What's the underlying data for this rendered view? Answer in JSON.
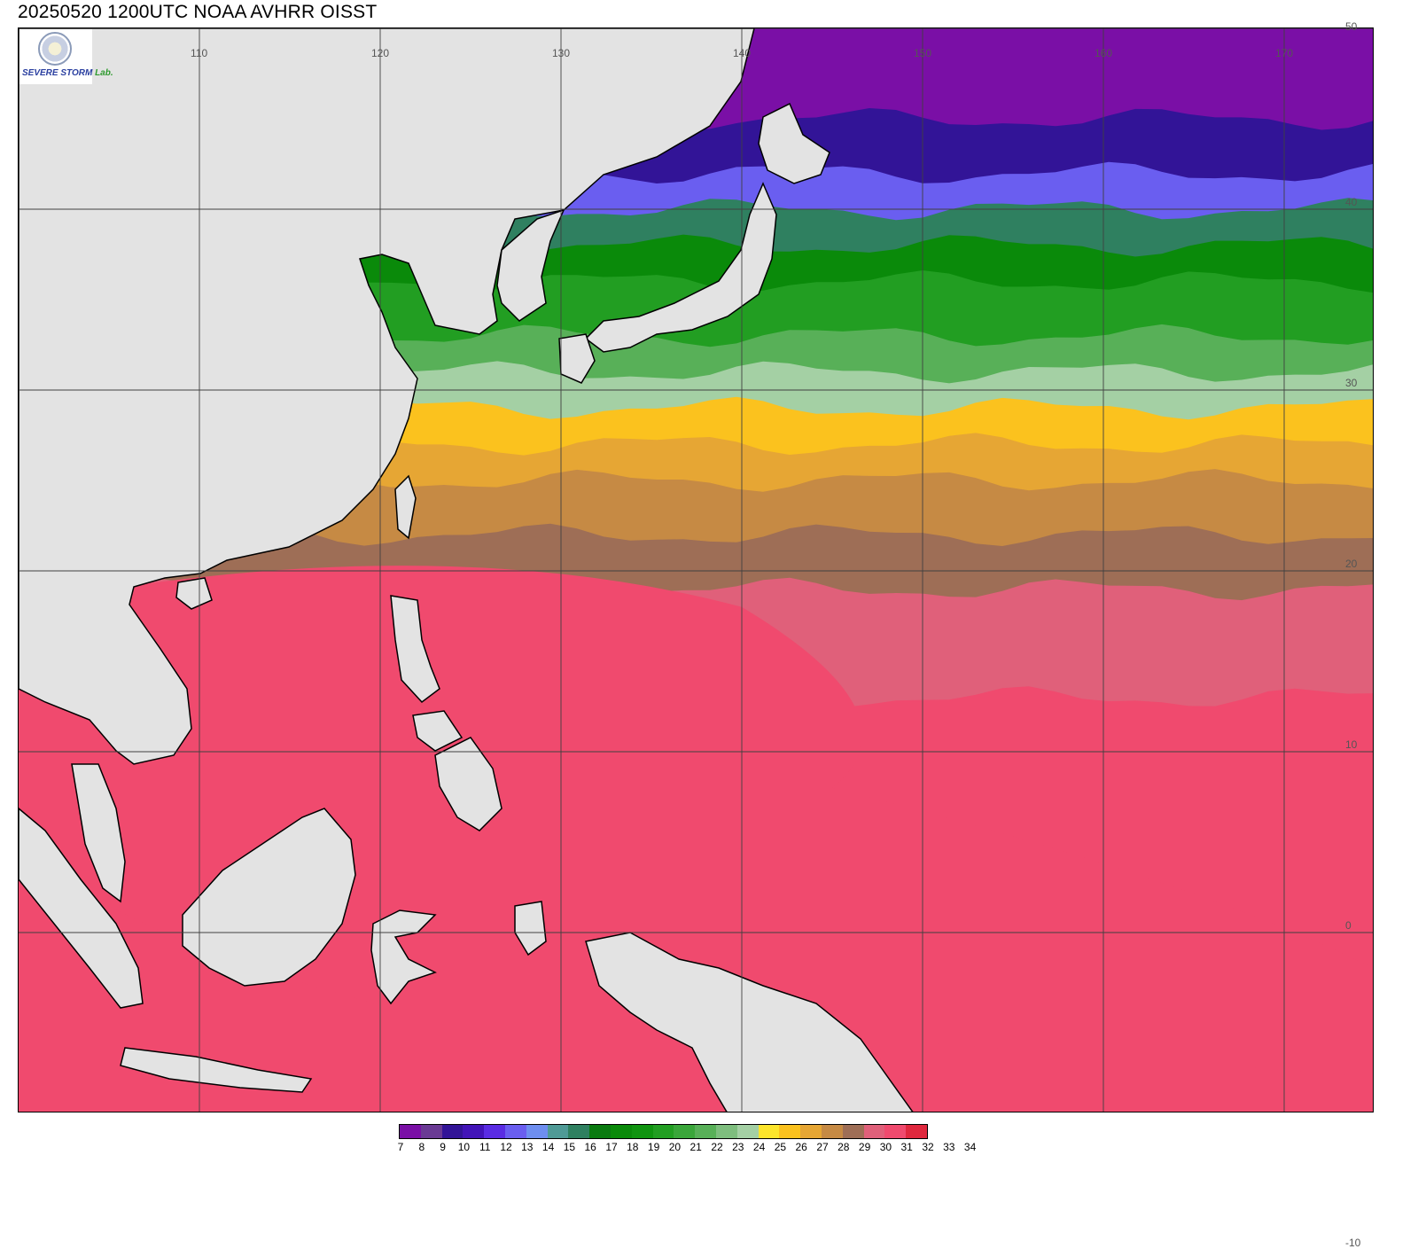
{
  "title": "20250520 1200UTC NOAA AVHRR OISST",
  "logo": {
    "line1": "SEVERE",
    "line2": "STORM",
    "lab": "Lab."
  },
  "map": {
    "extent": {
      "lon_min": 100,
      "lon_max": 175,
      "lat_min": -10,
      "lat_max": 50
    },
    "lon_ticks": [
      "110",
      "120",
      "130",
      "140",
      "150",
      "160",
      "170"
    ],
    "lon_tick_values": [
      110,
      120,
      130,
      140,
      150,
      160,
      170
    ],
    "lat_ticks": [
      "50",
      "40",
      "30",
      "20",
      "10",
      "0",
      "-10"
    ],
    "lat_tick_values": [
      50,
      40,
      30,
      20,
      10,
      0,
      -10
    ],
    "land_color": "#e3e3e3",
    "coast_color": "#000000",
    "sst_bands": [
      {
        "lat": 50,
        "value": 7
      },
      {
        "lat": 45,
        "value": 9
      },
      {
        "lat": 42,
        "value": 12
      },
      {
        "lat": 40,
        "value": 15
      },
      {
        "lat": 38,
        "value": 17
      },
      {
        "lat": 36,
        "value": 19
      },
      {
        "lat": 33,
        "value": 21
      },
      {
        "lat": 31,
        "value": 23
      },
      {
        "lat": 29,
        "value": 25
      },
      {
        "lat": 27,
        "value": 26
      },
      {
        "lat": 25,
        "value": 27
      },
      {
        "lat": 22,
        "value": 28
      },
      {
        "lat": 19,
        "value": 29
      },
      {
        "lat": 13,
        "value": 30
      }
    ]
  },
  "colorbar": {
    "colors": [
      "#7a0fa6",
      "#6a3a94",
      "#321497",
      "#4214b8",
      "#5a2ce3",
      "#6a5ef0",
      "#6e8ef0",
      "#4f9a96",
      "#2f8060",
      "#0a7a10",
      "#0a8a0a",
      "#109410",
      "#229e22",
      "#3aa63a",
      "#58b058",
      "#7ebe7e",
      "#a4d0a4",
      "#fce52c",
      "#fbc21e",
      "#e6a634",
      "#c68a44",
      "#9e6e56",
      "#e0607a",
      "#f04a6e",
      "#e0283e"
    ],
    "labels": [
      "7",
      "8",
      "9",
      "10",
      "11",
      "12",
      "13",
      "14",
      "15",
      "16",
      "17",
      "18",
      "19",
      "20",
      "21",
      "22",
      "23",
      "24",
      "25",
      "26",
      "27",
      "28",
      "29",
      "30",
      "31",
      "32",
      "33",
      "34"
    ]
  }
}
